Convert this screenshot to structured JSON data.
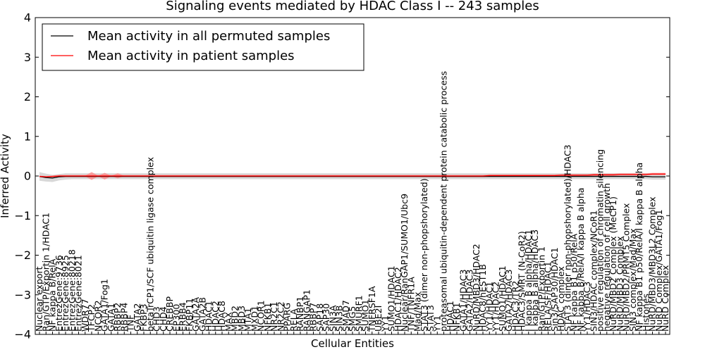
{
  "chart_data": {
    "type": "line",
    "title": "Signaling events mediated by HDAC Class I -- 243 samples",
    "xlabel": "Cellular Entities",
    "ylabel": "Inferred Activity",
    "ylim": [
      -4,
      4
    ],
    "yticks": [
      "−4",
      "−3",
      "−2",
      "−1",
      "0",
      "1",
      "2",
      "3",
      "4"
    ],
    "ytick_values": [
      -4,
      -3,
      -2,
      -1,
      0,
      1,
      2,
      3,
      4
    ],
    "legend": {
      "placement": "top-left",
      "entries": [
        {
          "label": "Mean activity in all permuted samples",
          "color": "#000000"
        },
        {
          "label": "Mean activity in patient samples",
          "color": "#ff0000"
        }
      ]
    },
    "colors": {
      "permuted": "#000000",
      "patient": "#ff0000",
      "permuted_band": "#c8c8c8",
      "patient_band": "#ff8080"
    },
    "categories": [
      "Nuclear export",
      "Ran/GTP/Exportin 1/HDAC1",
      "NF kappa B/RelA",
      "EntrezGene:9736",
      "EntrezGene:8925",
      "EntrezGene:80218",
      "EntrezGene:8021",
      "WDR77",
      "TFCP2",
      "NCOR2",
      "GATA1/Fog1",
      "GATA1",
      "RBBP2",
      "RBBP4",
      "TNF",
      "GATA2",
      "FKBP3",
      "betaTrCP1/SCF ubiquitin ligase complex",
      "CHD3",
      "CHD4",
      "CREBBP",
      "EP300",
      "ERBB4",
      "FKBP11",
      "GATA2A",
      "GATA2B",
      "HDAC1",
      "HDAC2",
      "HDAC8",
      "MAX",
      "MBD2",
      "MBD3",
      "MTA1",
      "MXD1",
      "NCOR1",
      "NFKB1",
      "NR2C1",
      "NR2C2",
      "PPARG",
      "RELA",
      "RANBP1",
      "RANGAP1",
      "RBBP7",
      "SAP18",
      "SAP30",
      "SIN3A",
      "SIN3B",
      "SMAD7",
      "SMG5",
      "SMURF1",
      "SUMO1",
      "TNFRSF1A",
      "UBE2I",
      "YY1",
      "SUMO1/HDAC1",
      "HDAC1/HDAC2",
      "Nuclear/RanGAP1/SUMO1/Ubc9",
      "TNF/TNFR1A",
      "Mad/Max",
      "STAT3 (dimer non-phopshorylated)",
      "STAT3",
      "YY1",
      "proteasomal ubiquitin-dependent protein catabolic process",
      "HDAC1",
      "NFKB1",
      "GATA1/HDAC3",
      "GATA2/HDAC3",
      "NuRD/MBD3/HDAC2",
      "HDAC8/hEST1B",
      "YY1/HDAC1",
      "YY1/HDAC2",
      "SUMO1/HDAC1",
      "GATA2/HDAC3",
      "HDAC3/TR2",
      "HDAC3/SMRT (N-CoR2)",
      "I kappa B alpha/HDAC1",
      "I kappa B alpha/HDAC3",
      "Ran/GTP/Exportin 1",
      "RELA/SF/HDAC1",
      "Sin3/SAP30/HDAC1",
      "HDAC complex",
      "STAT3 (dimer non-phopshorylated)/HDAC3",
      "NF kappa B1 p50/RelA",
      "NF kappa B/RelA/I kappa B alpha",
      "YY1/HDAC3",
      "SIN3/HDAC complex/NCoR1",
      "positive regulation of chromatin silencing",
      "negative regulation of cell growth",
      "NuRD/MBD2 Complex (MeCP1)",
      "NuRD/MBD3 Complex",
      "NuRD/MBD2/PRMT5 Complex",
      "SIN3 complex/Mad/Max",
      "NF kappa B1 p50/RelA/I kappa B alpha",
      "Histones",
      "NuRD/MBD3/MBD3L2 Complex",
      "NuRD Complex/GATA1/Fog1",
      "NuRD Complex"
    ],
    "series": [
      {
        "name": "Mean activity in all permuted samples",
        "values": [
          -0.01,
          -0.04,
          -0.05,
          -0.02,
          -0.01,
          -0.01,
          -0.01,
          -0.01,
          -0.01,
          -0.01,
          -0.01,
          -0.01,
          -0.01,
          -0.01,
          -0.01,
          -0.01,
          -0.01,
          -0.01,
          -0.01,
          -0.01,
          -0.01,
          -0.01,
          -0.01,
          -0.01,
          -0.01,
          -0.01,
          -0.01,
          -0.01,
          -0.01,
          -0.01,
          -0.01,
          -0.01,
          -0.01,
          -0.01,
          -0.01,
          -0.01,
          -0.01,
          -0.01,
          -0.01,
          -0.01,
          -0.01,
          -0.01,
          -0.01,
          -0.01,
          -0.01,
          -0.01,
          -0.01,
          -0.01,
          -0.01,
          -0.01,
          -0.01,
          -0.01,
          -0.01,
          -0.01,
          -0.01,
          -0.01,
          -0.01,
          -0.01,
          -0.01,
          -0.01,
          -0.01,
          -0.01,
          -0.01,
          -0.01,
          -0.01,
          -0.01,
          -0.01,
          -0.01,
          -0.01,
          -0.01,
          -0.01,
          -0.01,
          -0.01,
          -0.01,
          -0.01,
          -0.01,
          -0.01,
          -0.01,
          -0.01,
          -0.01,
          -0.01,
          -0.01,
          -0.01,
          -0.01,
          -0.01,
          -0.01,
          -0.01,
          -0.01,
          -0.01,
          -0.01,
          -0.01,
          -0.01,
          -0.01,
          -0.01,
          -0.02,
          -0.02,
          -0.02
        ]
      },
      {
        "name": "Mean activity in patient samples",
        "values": [
          -0.01,
          -0.02,
          -0.01,
          0.0,
          0.0,
          0.0,
          0.0,
          0.0,
          0.0,
          0.0,
          0.0,
          0.0,
          0.0,
          0.0,
          0.0,
          0.0,
          0.0,
          0.0,
          0.0,
          0.0,
          0.0,
          0.0,
          0.0,
          0.0,
          0.0,
          0.0,
          0.0,
          0.0,
          0.0,
          0.0,
          0.0,
          0.0,
          0.0,
          0.0,
          0.0,
          0.0,
          0.0,
          0.0,
          0.0,
          0.0,
          0.0,
          0.0,
          0.0,
          0.0,
          0.0,
          0.0,
          0.0,
          0.0,
          0.0,
          0.0,
          0.0,
          0.0,
          0.0,
          0.0,
          0.0,
          0.0,
          0.0,
          0.0,
          0.0,
          0.0,
          0.0,
          0.0,
          0.0,
          0.0,
          0.0,
          0.0,
          0.0,
          0.0,
          0.0,
          0.01,
          0.01,
          0.01,
          0.01,
          0.01,
          0.01,
          0.01,
          0.01,
          0.01,
          0.01,
          0.01,
          0.02,
          0.02,
          0.02,
          0.02,
          0.02,
          0.03,
          0.03,
          0.03,
          0.03,
          0.04,
          0.04,
          0.04,
          0.04,
          0.04,
          0.05,
          0.05,
          0.05
        ]
      }
    ],
    "permuted_band": {
      "lower": [
        -0.12,
        -0.14,
        -0.15,
        -0.11,
        -0.09,
        -0.08,
        -0.08,
        -0.08,
        -0.08,
        -0.08,
        -0.08,
        -0.08,
        -0.08,
        -0.08,
        -0.08,
        -0.08,
        -0.08,
        -0.08,
        -0.08,
        -0.08,
        -0.08,
        -0.08,
        -0.08,
        -0.08,
        -0.08,
        -0.08,
        -0.08,
        -0.08,
        -0.08,
        -0.08,
        -0.08,
        -0.08,
        -0.08,
        -0.08,
        -0.08,
        -0.08,
        -0.08,
        -0.08,
        -0.08,
        -0.08,
        -0.08,
        -0.08,
        -0.08,
        -0.08,
        -0.08,
        -0.08,
        -0.08,
        -0.08,
        -0.08,
        -0.08,
        -0.08,
        -0.08,
        -0.08,
        -0.08,
        -0.08,
        -0.08,
        -0.08,
        -0.08,
        -0.08,
        -0.08,
        -0.08,
        -0.08,
        -0.08,
        -0.08,
        -0.08,
        -0.08,
        -0.08,
        -0.08,
        -0.08,
        -0.08,
        -0.08,
        -0.08,
        -0.08,
        -0.08,
        -0.08,
        -0.08,
        -0.08,
        -0.08,
        -0.08,
        -0.08,
        -0.08,
        -0.08,
        -0.08,
        -0.08,
        -0.08,
        -0.08,
        -0.08,
        -0.08,
        -0.08,
        -0.08,
        -0.08,
        -0.08,
        -0.08,
        -0.08,
        -0.09,
        -0.09,
        -0.09
      ],
      "upper": [
        0.1,
        0.06,
        0.03,
        0.05,
        0.07,
        0.07,
        0.07,
        0.07,
        0.07,
        0.07,
        0.07,
        0.07,
        0.07,
        0.07,
        0.07,
        0.07,
        0.07,
        0.07,
        0.07,
        0.07,
        0.07,
        0.07,
        0.07,
        0.07,
        0.07,
        0.07,
        0.07,
        0.07,
        0.07,
        0.07,
        0.07,
        0.07,
        0.07,
        0.07,
        0.07,
        0.07,
        0.07,
        0.07,
        0.07,
        0.07,
        0.07,
        0.07,
        0.07,
        0.07,
        0.07,
        0.07,
        0.07,
        0.07,
        0.07,
        0.07,
        0.07,
        0.07,
        0.07,
        0.07,
        0.07,
        0.07,
        0.07,
        0.07,
        0.07,
        0.07,
        0.07,
        0.07,
        0.07,
        0.07,
        0.07,
        0.07,
        0.07,
        0.07,
        0.07,
        0.07,
        0.07,
        0.07,
        0.07,
        0.07,
        0.07,
        0.07,
        0.07,
        0.07,
        0.07,
        0.07,
        0.07,
        0.07,
        0.07,
        0.07,
        0.07,
        0.07,
        0.07,
        0.07,
        0.07,
        0.07,
        0.07,
        0.07,
        0.07,
        0.07,
        0.07,
        0.07,
        0.07
      ]
    },
    "patient_band": {
      "lower": [
        -0.03,
        -0.04,
        -0.03,
        -0.03,
        -0.03,
        -0.03,
        -0.03,
        -0.03,
        -0.03,
        -0.03,
        -0.03,
        -0.03,
        -0.03,
        -0.03,
        -0.03,
        -0.03,
        -0.03,
        -0.03,
        -0.03,
        -0.03,
        -0.03,
        -0.03,
        -0.03,
        -0.03,
        -0.03,
        -0.03,
        -0.03,
        -0.03,
        -0.03,
        -0.03,
        -0.03,
        -0.03,
        -0.03,
        -0.03,
        -0.03,
        -0.03,
        -0.03,
        -0.03,
        -0.03,
        -0.03,
        -0.03,
        -0.03,
        -0.03,
        -0.03,
        -0.03,
        -0.03,
        -0.03,
        -0.03,
        -0.03,
        -0.03,
        -0.03,
        -0.03,
        -0.03,
        -0.03,
        -0.03,
        -0.03,
        -0.03,
        -0.03,
        -0.03,
        -0.03,
        -0.03,
        -0.03,
        -0.03,
        -0.03,
        -0.03,
        -0.03,
        -0.03,
        -0.03,
        -0.03,
        -0.02,
        -0.02,
        -0.02,
        -0.02,
        -0.02,
        -0.02,
        -0.02,
        -0.02,
        -0.02,
        -0.02,
        -0.02,
        -0.01,
        -0.01,
        -0.01,
        -0.01,
        -0.01,
        0.0,
        0.0,
        0.0,
        0.0,
        0.01,
        0.01,
        0.01,
        0.01,
        0.01,
        0.02,
        0.02,
        0.02
      ],
      "upper": [
        0.01,
        0.0,
        0.01,
        0.03,
        0.03,
        0.03,
        0.03,
        0.03,
        0.03,
        0.03,
        0.03,
        0.03,
        0.03,
        0.03,
        0.03,
        0.03,
        0.03,
        0.03,
        0.03,
        0.03,
        0.03,
        0.03,
        0.03,
        0.03,
        0.03,
        0.03,
        0.03,
        0.03,
        0.03,
        0.03,
        0.03,
        0.03,
        0.03,
        0.03,
        0.03,
        0.03,
        0.03,
        0.03,
        0.03,
        0.03,
        0.03,
        0.03,
        0.03,
        0.03,
        0.03,
        0.03,
        0.03,
        0.03,
        0.03,
        0.03,
        0.03,
        0.03,
        0.03,
        0.03,
        0.03,
        0.03,
        0.03,
        0.03,
        0.03,
        0.03,
        0.03,
        0.03,
        0.03,
        0.03,
        0.03,
        0.03,
        0.03,
        0.03,
        0.03,
        0.04,
        0.04,
        0.04,
        0.04,
        0.04,
        0.04,
        0.04,
        0.04,
        0.04,
        0.04,
        0.04,
        0.05,
        0.05,
        0.05,
        0.05,
        0.05,
        0.06,
        0.06,
        0.06,
        0.06,
        0.07,
        0.07,
        0.07,
        0.07,
        0.07,
        0.08,
        0.08,
        0.08
      ]
    },
    "patient_bumps": [
      {
        "index": 8,
        "lower": -0.1,
        "upper": 0.1
      },
      {
        "index": 10,
        "lower": -0.09,
        "upper": 0.08
      },
      {
        "index": 12,
        "lower": -0.06,
        "upper": 0.07
      }
    ]
  }
}
